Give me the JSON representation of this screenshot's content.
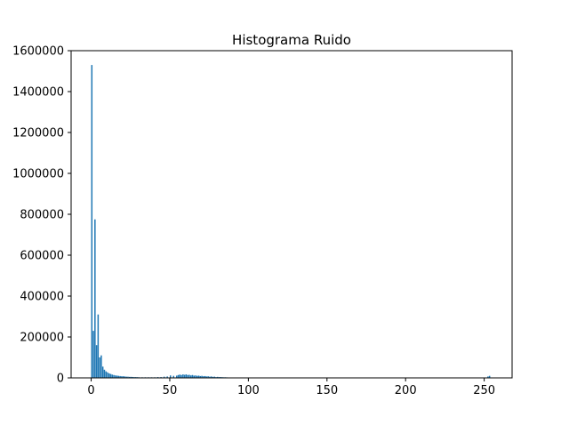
{
  "chart_data": {
    "type": "bar",
    "title": "Histograma Ruido",
    "xlabel": "",
    "ylabel": "",
    "xlim": [
      -12.75,
      267.75
    ],
    "ylim": [
      0,
      1600000
    ],
    "x_ticks": [
      0,
      50,
      100,
      150,
      200,
      250
    ],
    "y_ticks": [
      0,
      200000,
      400000,
      600000,
      800000,
      1000000,
      1200000,
      1400000,
      1600000
    ],
    "x_tick_labels": [
      "0",
      "50",
      "100",
      "150",
      "200",
      "250"
    ],
    "y_tick_labels": [
      "0",
      "200000",
      "400000",
      "600000",
      "800000",
      "1000000",
      "1200000",
      "1400000",
      "1600000"
    ],
    "grid": false,
    "bar_color": "#1f77b4",
    "bin_width": 1,
    "x": [
      0,
      1,
      2,
      3,
      4,
      5,
      6,
      7,
      8,
      9,
      10,
      11,
      12,
      13,
      14,
      15,
      16,
      17,
      18,
      19,
      20,
      21,
      22,
      23,
      24,
      25,
      26,
      27,
      28,
      29,
      30,
      32,
      34,
      36,
      38,
      40,
      42,
      44,
      46,
      48,
      50,
      52,
      54,
      55,
      56,
      57,
      58,
      59,
      60,
      61,
      62,
      63,
      64,
      65,
      66,
      67,
      68,
      69,
      70,
      71,
      72,
      73,
      74,
      75,
      76,
      77,
      78,
      79,
      80,
      81,
      82,
      83,
      84,
      85,
      86,
      88,
      90,
      95,
      100,
      110,
      120,
      150,
      200,
      252,
      253
    ],
    "values": [
      1530000,
      230000,
      775000,
      160000,
      310000,
      100000,
      110000,
      55000,
      40000,
      32000,
      27000,
      22000,
      19000,
      16000,
      14000,
      12000,
      11000,
      10000,
      9000,
      8000,
      8000,
      7000,
      6000,
      6000,
      5000,
      5000,
      4500,
      4000,
      4000,
      3500,
      3000,
      3000,
      3000,
      3000,
      3000,
      3000,
      4000,
      4000,
      6000,
      7000,
      12000,
      10000,
      11000,
      14000,
      16000,
      14000,
      17000,
      15000,
      17000,
      14000,
      15000,
      12000,
      14000,
      11000,
      12000,
      10000,
      11000,
      9000,
      10000,
      8000,
      9000,
      7000,
      8000,
      6000,
      7000,
      5000,
      6000,
      4000,
      5000,
      4000,
      4000,
      3500,
      3000,
      3000,
      2500,
      2000,
      2000,
      1500,
      1500,
      1000,
      1000,
      800,
      800,
      7000,
      10000
    ]
  }
}
